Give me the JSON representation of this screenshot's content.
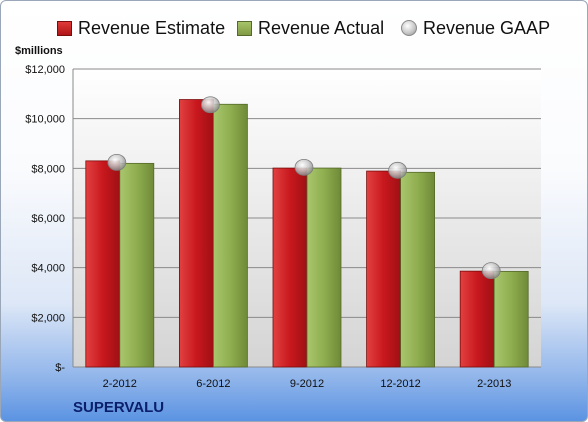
{
  "chart_data": {
    "type": "bar",
    "unit_label": "$millions",
    "company": "SUPERVALU",
    "categories": [
      "2-2012",
      "6-2012",
      "9-2012",
      "12-2012",
      "2-2013"
    ],
    "series": [
      {
        "name": "Revenue Estimate",
        "values": [
          8300,
          10770,
          8010,
          7890,
          3860
        ],
        "color": "#c8181e"
      },
      {
        "name": "Revenue Actual",
        "values": [
          8200,
          10580,
          8010,
          7840,
          3850
        ],
        "color": "#8fae4f"
      }
    ],
    "points": [
      {
        "name": "Revenue GAAP",
        "values": [
          8240,
          10560,
          8040,
          7920,
          3880
        ],
        "color": "#bdbdbd"
      }
    ],
    "y_ticks": [
      "$-",
      "$2,000",
      "$4,000",
      "$6,000",
      "$8,000",
      "$10,000",
      "$12,000"
    ],
    "ylim": [
      0,
      12000
    ],
    "grid": true,
    "legend_position": "top"
  }
}
